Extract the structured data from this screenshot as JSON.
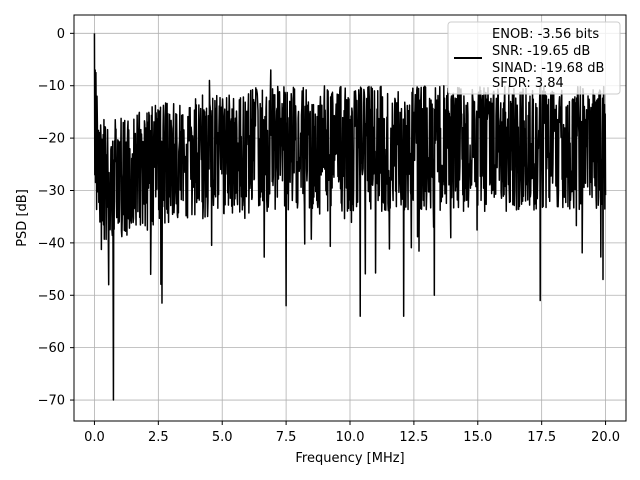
{
  "chart_data": {
    "type": "line",
    "title": "",
    "xlabel": "Frequency [MHz]",
    "ylabel": "PSD [dB]",
    "xlim": [
      -0.8,
      20.8
    ],
    "ylim": [
      -74,
      3.5
    ],
    "xticks": [
      0.0,
      2.5,
      5.0,
      7.5,
      10.0,
      12.5,
      15.0,
      17.5,
      20.0
    ],
    "xtick_labels": [
      "0.0",
      "2.5",
      "5.0",
      "7.5",
      "10.0",
      "12.5",
      "15.0",
      "17.5",
      "20.0"
    ],
    "yticks": [
      0,
      -10,
      -20,
      -30,
      -40,
      -50,
      -60,
      -70
    ],
    "ytick_labels": [
      "0",
      "−10",
      "−20",
      "−30",
      "−40",
      "−50",
      "−60",
      "−70"
    ],
    "grid": true,
    "legend": {
      "placement": "top-right",
      "entries": [
        "ENOB: -3.56 bits",
        "SNR: -19.65 dB",
        "SINAD: -19.68 dB",
        "SFDR: 3.84"
      ]
    },
    "series": [
      {
        "color": "#000000",
        "profile": {
          "description_points": "frequency [MHz] vs approximate mean PSD [dB]",
          "x": [
            0.0,
            0.05,
            0.2,
            0.5,
            1.0,
            2.0,
            3.0,
            4.0,
            5.0,
            7.0,
            10.0,
            14.0,
            18.0,
            20.0
          ],
          "y": [
            0,
            -20,
            -25,
            -27,
            -26,
            -24,
            -23,
            -22,
            -21,
            -20,
            -20,
            -20,
            -20,
            -20
          ]
        },
        "notable_points": [
          {
            "x": 0.0,
            "y": 0.0
          },
          {
            "x": 0.02,
            "y": -27
          },
          {
            "x": 0.05,
            "y": -7.5
          },
          {
            "x": 0.1,
            "y": -12
          },
          {
            "x": 0.75,
            "y": -70
          },
          {
            "x": 0.55,
            "y": -48
          },
          {
            "x": 2.65,
            "y": -51.5
          },
          {
            "x": 2.2,
            "y": -46
          },
          {
            "x": 7.5,
            "y": -52
          },
          {
            "x": 10.4,
            "y": -54
          },
          {
            "x": 12.1,
            "y": -54
          },
          {
            "x": 13.3,
            "y": -50
          },
          {
            "x": 17.45,
            "y": -51
          },
          {
            "x": 19.9,
            "y": -47
          },
          {
            "x": 6.9,
            "y": -7
          },
          {
            "x": 4.5,
            "y": -9
          }
        ]
      }
    ]
  }
}
